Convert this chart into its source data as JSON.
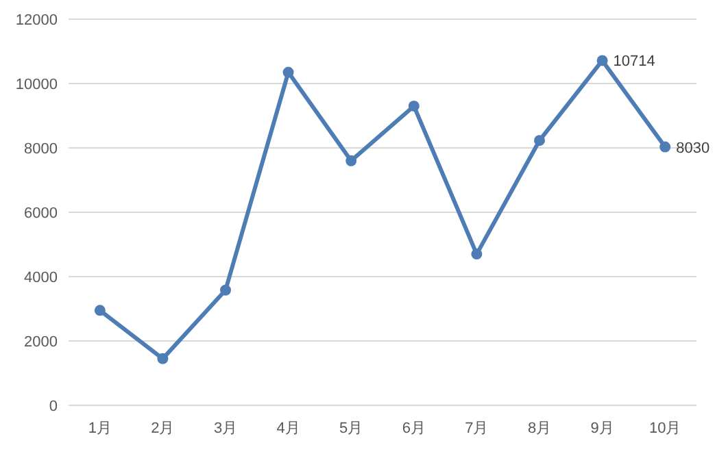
{
  "chart_data": {
    "type": "line",
    "categories": [
      "1月",
      "2月",
      "3月",
      "4月",
      "5月",
      "6月",
      "7月",
      "8月",
      "9月",
      "10月"
    ],
    "series": [
      {
        "color": "#4e7db5",
        "values": [
          2950,
          1450,
          3580,
          10350,
          7600,
          9300,
          4700,
          8230,
          10714,
          8030
        ],
        "value_labels": [
          null,
          null,
          null,
          null,
          null,
          null,
          null,
          null,
          "10714",
          "8030"
        ]
      }
    ],
    "ylim": [
      0,
      12000
    ],
    "yticks": [
      0,
      2000,
      4000,
      6000,
      8000,
      10000,
      12000
    ],
    "grid": "y",
    "marker": "circle",
    "line_style": "solid"
  }
}
